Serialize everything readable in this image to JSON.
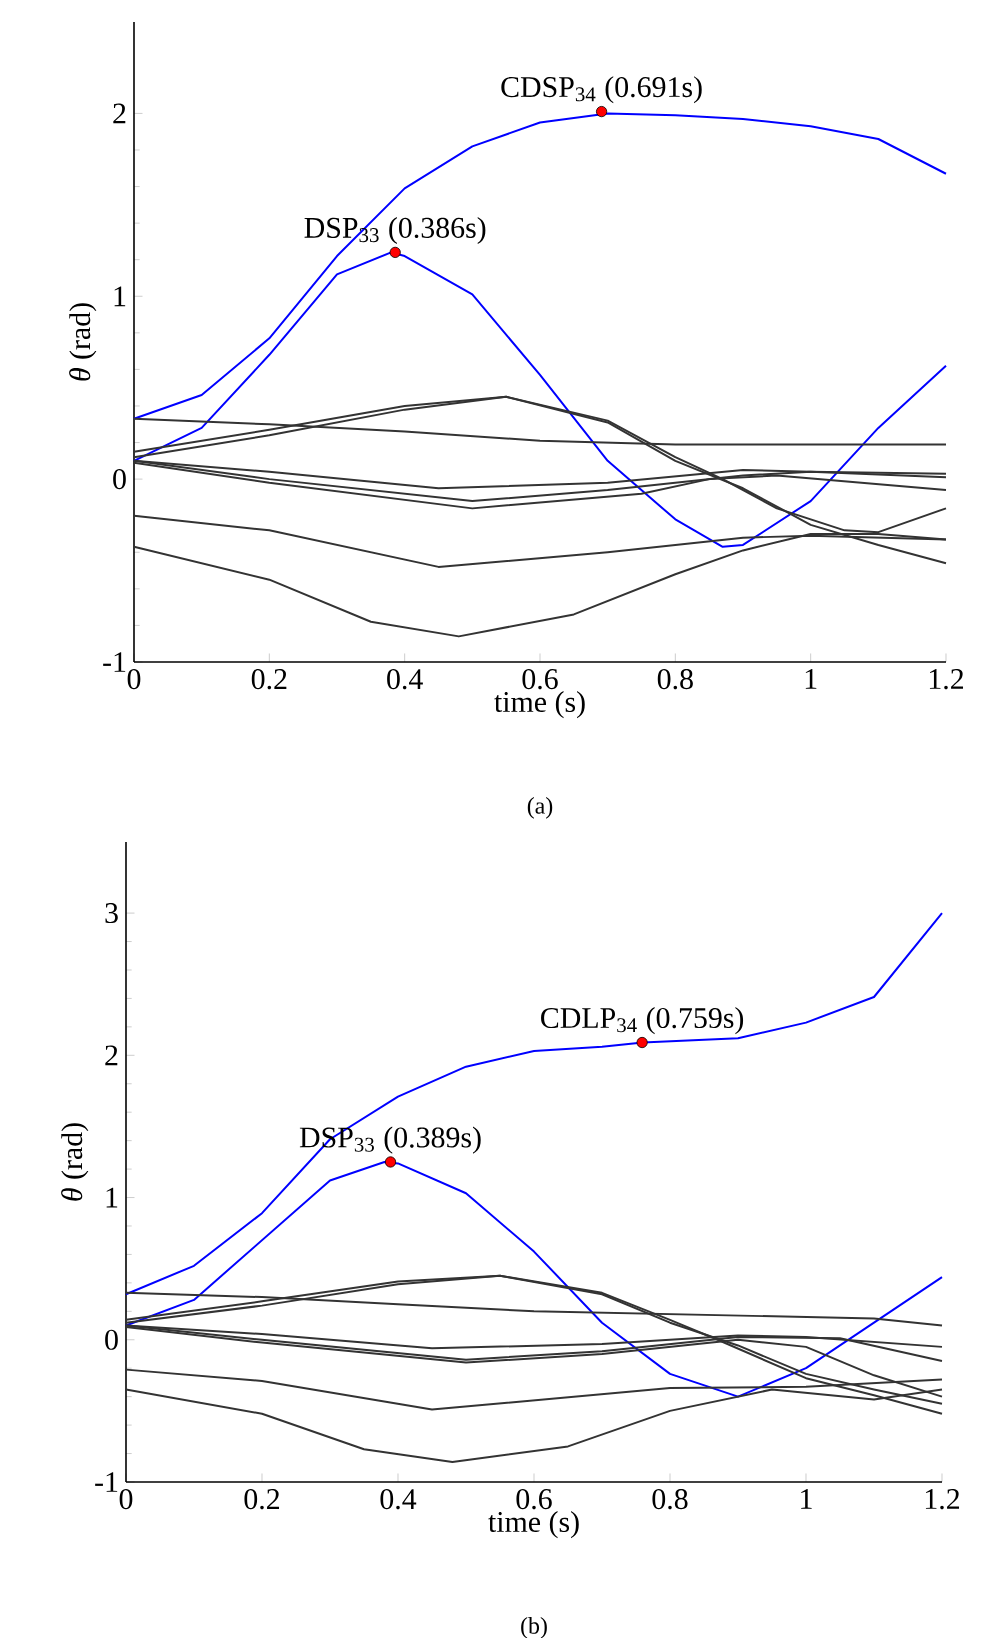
{
  "chart_data": [
    {
      "type": "line",
      "xlabel": "time (s)",
      "ylabel": "*θ* (rad)",
      "xlim": [
        0,
        1.2
      ],
      "ylim": [
        -1,
        2.5
      ],
      "xticks": [
        0,
        0.2,
        0.4,
        0.6,
        0.8,
        1,
        1.2
      ],
      "yticks": [
        -1,
        0,
        1,
        2
      ],
      "marker": "none",
      "line_style": "solid",
      "annotations": [
        {
          "text": "CDSP$_{34}$ (0.691s)",
          "x": 0.691,
          "y": 2.01
        },
        {
          "text": "DSP$_{33}$ (0.386s)",
          "x": 0.386,
          "y": 1.24
        },
        "(a)"
      ],
      "series": [
        {
          "color": "#0000ff",
          "x": [
            0,
            0.1,
            0.2,
            0.3,
            0.4,
            0.5,
            0.6,
            0.7,
            0.8,
            0.9,
            1.0,
            1.1,
            1.2
          ],
          "values": [
            0.33,
            0.46,
            0.77,
            1.22,
            1.59,
            1.82,
            1.95,
            2.0,
            1.99,
            1.97,
            1.93,
            1.86,
            1.67
          ]
        },
        {
          "color": "#0000ff",
          "x": [
            0,
            0.1,
            0.2,
            0.3,
            0.38,
            0.4,
            0.5,
            0.6,
            0.7,
            0.8,
            0.87,
            0.9,
            1.0,
            1.1,
            1.2
          ],
          "values": [
            0.1,
            0.28,
            0.68,
            1.12,
            1.24,
            1.22,
            1.01,
            0.57,
            0.1,
            -0.22,
            -0.37,
            -0.36,
            -0.12,
            0.28,
            0.62
          ]
        },
        {
          "color": "#333333",
          "x": [
            0,
            0.2,
            0.4,
            0.6,
            0.8,
            1.0,
            1.2
          ],
          "values": [
            0.33,
            0.3,
            0.26,
            0.21,
            0.19,
            0.19,
            0.19
          ]
        },
        {
          "color": "#333333",
          "x": [
            0,
            0.2,
            0.4,
            0.55,
            0.7,
            0.8,
            0.87,
            0.95,
            1.05,
            1.1,
            1.2
          ],
          "values": [
            0.15,
            0.27,
            0.4,
            0.45,
            0.32,
            0.12,
            0.0,
            -0.16,
            -0.28,
            -0.29,
            -0.16
          ]
        },
        {
          "color": "#333333",
          "x": [
            0,
            0.2,
            0.4,
            0.55,
            0.7,
            0.8,
            0.9,
            1.0,
            1.1,
            1.2
          ],
          "values": [
            0.12,
            0.24,
            0.38,
            0.45,
            0.31,
            0.1,
            -0.05,
            -0.25,
            -0.36,
            -0.46
          ]
        },
        {
          "color": "#333333",
          "x": [
            0,
            0.2,
            0.45,
            0.7,
            0.9,
            1.0,
            1.2
          ],
          "values": [
            0.1,
            0.04,
            -0.05,
            -0.02,
            0.05,
            0.04,
            0.03
          ]
        },
        {
          "color": "#333333",
          "x": [
            0,
            0.2,
            0.5,
            0.7,
            0.9,
            1.0,
            1.2
          ],
          "values": [
            0.1,
            0.0,
            -0.12,
            -0.06,
            0.02,
            0.04,
            0.01
          ]
        },
        {
          "color": "#333333",
          "x": [
            0,
            0.2,
            0.5,
            0.75,
            0.85,
            0.95,
            1.2
          ],
          "values": [
            0.09,
            -0.02,
            -0.16,
            -0.08,
            0.0,
            0.02,
            -0.06
          ]
        },
        {
          "color": "#333333",
          "x": [
            0,
            0.2,
            0.45,
            0.7,
            0.9,
            1.0,
            1.2
          ],
          "values": [
            -0.2,
            -0.28,
            -0.48,
            -0.4,
            -0.32,
            -0.31,
            -0.33
          ]
        },
        {
          "color": "#333333",
          "x": [
            0,
            0.2,
            0.35,
            0.48,
            0.65,
            0.8,
            0.9,
            1.0,
            1.1,
            1.2
          ],
          "values": [
            -0.37,
            -0.55,
            -0.78,
            -0.86,
            -0.74,
            -0.52,
            -0.39,
            -0.3,
            -0.3,
            -0.33
          ]
        },
        {
          "type": "scatter",
          "marker": "circle",
          "color": "#ff0000",
          "x": [
            0.691,
            0.386
          ],
          "values": [
            2.01,
            1.24
          ]
        }
      ]
    },
    {
      "type": "line",
      "xlabel": "time (s)",
      "ylabel": "*θ* (rad)",
      "xlim": [
        0,
        1.2
      ],
      "ylim": [
        -1,
        3.5
      ],
      "xticks": [
        0,
        0.2,
        0.4,
        0.6,
        0.8,
        1,
        1.2
      ],
      "yticks": [
        -1,
        0,
        1,
        2,
        3
      ],
      "marker": "none",
      "line_style": "solid",
      "annotations": [
        {
          "text": "CDLP$_{34}$ (0.759s)",
          "x": 0.759,
          "y": 2.09
        },
        {
          "text": "DSP$_{33}$ (0.389s)",
          "x": 0.389,
          "y": 1.25
        },
        "(b)"
      ],
      "series": [
        {
          "color": "#0000ff",
          "x": [
            0,
            0.1,
            0.2,
            0.3,
            0.4,
            0.5,
            0.6,
            0.7,
            0.76,
            0.9,
            1.0,
            1.1,
            1.2
          ],
          "values": [
            0.32,
            0.52,
            0.89,
            1.41,
            1.71,
            1.92,
            2.03,
            2.06,
            2.09,
            2.12,
            2.23,
            2.41,
            3.0
          ]
        },
        {
          "color": "#0000ff",
          "x": [
            0,
            0.1,
            0.2,
            0.3,
            0.38,
            0.4,
            0.5,
            0.6,
            0.7,
            0.8,
            0.9,
            1.0,
            1.1,
            1.2
          ],
          "values": [
            0.1,
            0.28,
            0.7,
            1.12,
            1.25,
            1.24,
            1.03,
            0.62,
            0.12,
            -0.24,
            -0.4,
            -0.2,
            0.12,
            0.44
          ]
        },
        {
          "color": "#333333",
          "x": [
            0,
            0.2,
            0.4,
            0.6,
            0.8,
            1.0,
            1.1,
            1.2
          ],
          "values": [
            0.33,
            0.3,
            0.25,
            0.2,
            0.18,
            0.16,
            0.15,
            0.1
          ]
        },
        {
          "color": "#333333",
          "x": [
            0,
            0.2,
            0.4,
            0.55,
            0.7,
            0.8,
            0.87,
            1.0,
            1.1,
            1.2
          ],
          "values": [
            0.14,
            0.27,
            0.41,
            0.45,
            0.33,
            0.14,
            0.0,
            -0.27,
            -0.39,
            -0.52
          ]
        },
        {
          "color": "#333333",
          "x": [
            0,
            0.2,
            0.4,
            0.55,
            0.7,
            0.8,
            0.9,
            1.0,
            1.1,
            1.2
          ],
          "values": [
            0.12,
            0.24,
            0.39,
            0.45,
            0.32,
            0.12,
            -0.04,
            -0.24,
            -0.35,
            -0.45
          ]
        },
        {
          "color": "#333333",
          "x": [
            0,
            0.2,
            0.45,
            0.7,
            0.9,
            1.0,
            1.2
          ],
          "values": [
            0.1,
            0.04,
            -0.06,
            -0.03,
            0.03,
            0.02,
            -0.05
          ]
        },
        {
          "color": "#333333",
          "x": [
            0,
            0.2,
            0.5,
            0.7,
            0.9,
            1.05,
            1.2
          ],
          "values": [
            0.1,
            0.0,
            -0.14,
            -0.08,
            0.02,
            0.01,
            -0.15
          ]
        },
        {
          "color": "#333333",
          "x": [
            0,
            0.2,
            0.5,
            0.7,
            0.9,
            1.0,
            1.1,
            1.2
          ],
          "values": [
            0.09,
            -0.02,
            -0.16,
            -0.1,
            0.0,
            -0.05,
            -0.25,
            -0.4
          ]
        },
        {
          "color": "#333333",
          "x": [
            0,
            0.2,
            0.45,
            0.8,
            1.0,
            1.2
          ],
          "values": [
            -0.21,
            -0.29,
            -0.49,
            -0.34,
            -0.33,
            -0.28
          ]
        },
        {
          "color": "#333333",
          "x": [
            0,
            0.2,
            0.35,
            0.48,
            0.65,
            0.8,
            0.95,
            1.1,
            1.2
          ],
          "values": [
            -0.35,
            -0.52,
            -0.77,
            -0.86,
            -0.75,
            -0.5,
            -0.35,
            -0.42,
            -0.35
          ]
        },
        {
          "type": "scatter",
          "marker": "circle",
          "color": "#ff0000",
          "x": [
            0.759,
            0.389
          ],
          "values": [
            2.09,
            1.25
          ]
        }
      ]
    }
  ]
}
